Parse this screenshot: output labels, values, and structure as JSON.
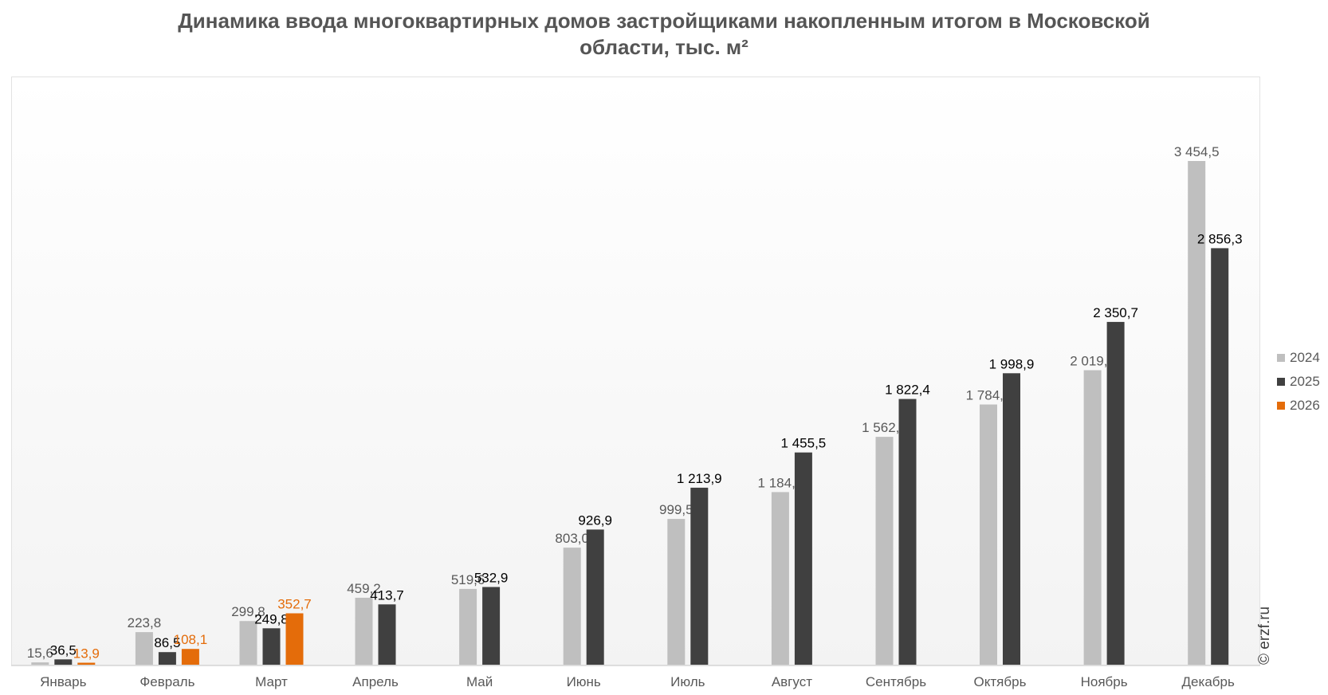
{
  "title_line1": "Динамика ввода многоквартирных домов застройщиками накопленным итогом в Московской",
  "title_line2": "области, тыс. м²",
  "credit": "© erzf.ru",
  "chart_data": {
    "type": "bar",
    "title": "Динамика ввода многоквартирных домов застройщиками накопленным итогом в Московской области, тыс. м²",
    "categories": [
      "Январь",
      "Февраль",
      "Март",
      "Апрель",
      "Май",
      "Июнь",
      "Июль",
      "Август",
      "Сентябрь",
      "Октябрь",
      "Ноябрь",
      "Декабрь"
    ],
    "series": [
      {
        "name": "2024",
        "color": "#bfbfbf",
        "label_color": "#595959",
        "values": [
          15.6,
          223.8,
          299.8,
          459.2,
          519.6,
          803.0,
          999.5,
          1184.2,
          1562.7,
          1784.9,
          2019.6,
          3454.5
        ],
        "labels": [
          "15,6",
          "223,8",
          "299,8",
          "459,2",
          "519,6",
          "803,0",
          "999,5",
          "1 184,2",
          "1 562,7",
          "1 784,9",
          "2 019,6",
          "3 454,5"
        ]
      },
      {
        "name": "2025",
        "color": "#404040",
        "label_color": "#000000",
        "values": [
          36.5,
          86.5,
          249.8,
          413.7,
          532.9,
          926.9,
          1213.9,
          1455.5,
          1822.4,
          1998.9,
          2350.7,
          2856.3
        ],
        "labels": [
          "36,5",
          "86,5",
          "249,8",
          "413,7",
          "532,9",
          "926,9",
          "1 213,9",
          "1 455,5",
          "1 822,4",
          "1 998,9",
          "2 350,7",
          "2 856,3"
        ]
      },
      {
        "name": "2026",
        "color": "#e46c0a",
        "label_color": "#e46c0a",
        "values": [
          13.9,
          108.1,
          352.7,
          null,
          null,
          null,
          null,
          null,
          null,
          null,
          null,
          null
        ],
        "labels": [
          "13,9",
          "108,1",
          "352,7",
          "",
          "",
          "",
          "",
          "",
          "",
          "",
          "",
          ""
        ]
      }
    ],
    "ylim": [
      0,
      3750
    ],
    "grid": false,
    "legend_position": "right"
  }
}
